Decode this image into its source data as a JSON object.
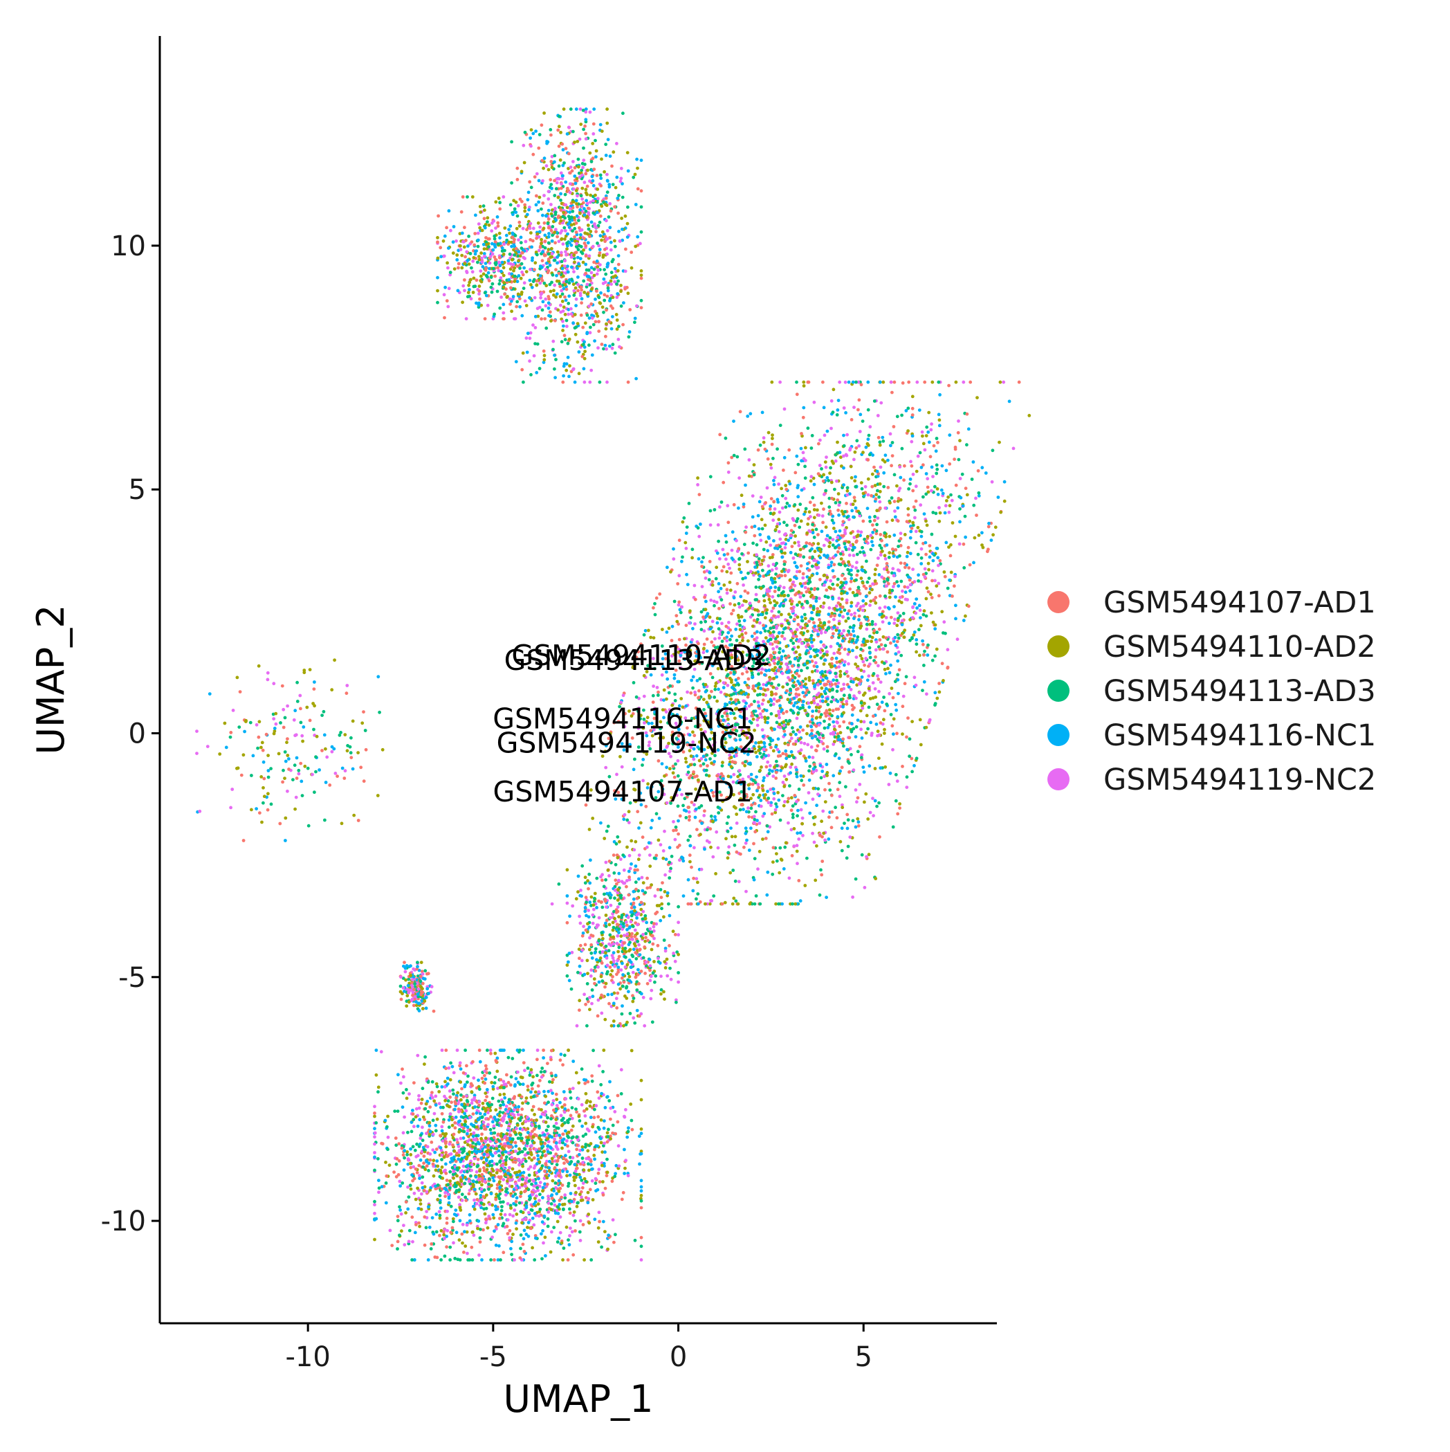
{
  "chart_data": {
    "type": "scatter",
    "title": "",
    "xlabel": "UMAP_1",
    "ylabel": "UMAP_2",
    "xlim": [
      -14.0,
      8.6
    ],
    "ylim": [
      -12.1,
      14.3
    ],
    "x_ticks": [
      -10,
      -5,
      0,
      5
    ],
    "x_tick_labels": [
      "-10",
      "-5",
      "0",
      "5"
    ],
    "y_ticks": [
      -10,
      -5,
      0,
      5,
      10
    ],
    "y_tick_labels": [
      "-10",
      "-5",
      "0",
      "5",
      "10"
    ],
    "grid": false,
    "legend_position": "right",
    "series": [
      {
        "name": "GSM5494107-AD1",
        "color": "#F8766D"
      },
      {
        "name": "GSM5494110-AD2",
        "color": "#A3A500"
      },
      {
        "name": "GSM5494113-AD3",
        "color": "#00BF7D"
      },
      {
        "name": "GSM5494116-NC1",
        "color": "#00B0F6"
      },
      {
        "name": "GSM5494119-NC2",
        "color": "#E76BF3"
      }
    ],
    "point_regions": [
      {
        "x": [
          -4.5,
          -1.0
        ],
        "y": [
          7.2,
          12.8
        ],
        "share": 0.12
      },
      {
        "x": [
          -6.5,
          -3.5
        ],
        "y": [
          8.5,
          11.0
        ],
        "share": 0.05
      },
      {
        "x": [
          -1.0,
          7.5
        ],
        "y": [
          -3.5,
          7.2
        ],
        "share": 0.46
      },
      {
        "x": [
          -3.0,
          0.0
        ],
        "y": [
          -6.0,
          -2.5
        ],
        "share": 0.07
      },
      {
        "x": [
          -8.2,
          -1.0
        ],
        "y": [
          -10.8,
          -6.5
        ],
        "share": 0.26
      },
      {
        "x": [
          -7.5,
          -6.6
        ],
        "y": [
          -5.7,
          -4.7
        ],
        "share": 0.02
      },
      {
        "x": [
          -13.0,
          -7.8
        ],
        "y": [
          -2.2,
          1.5
        ],
        "share": 0.02
      }
    ],
    "annotations": [
      {
        "text": "GSM5494110-AD2",
        "x": -1.0,
        "y": 1.6
      },
      {
        "text": "GSM5494113-AD3",
        "x": -1.2,
        "y": 1.5
      },
      {
        "text": "GSM5494116-NC1",
        "x": -1.5,
        "y": 0.3
      },
      {
        "text": "GSM5494119-NC2",
        "x": -1.4,
        "y": -0.2
      },
      {
        "text": "GSM5494107-AD1",
        "x": -1.5,
        "y": -1.2
      }
    ]
  }
}
